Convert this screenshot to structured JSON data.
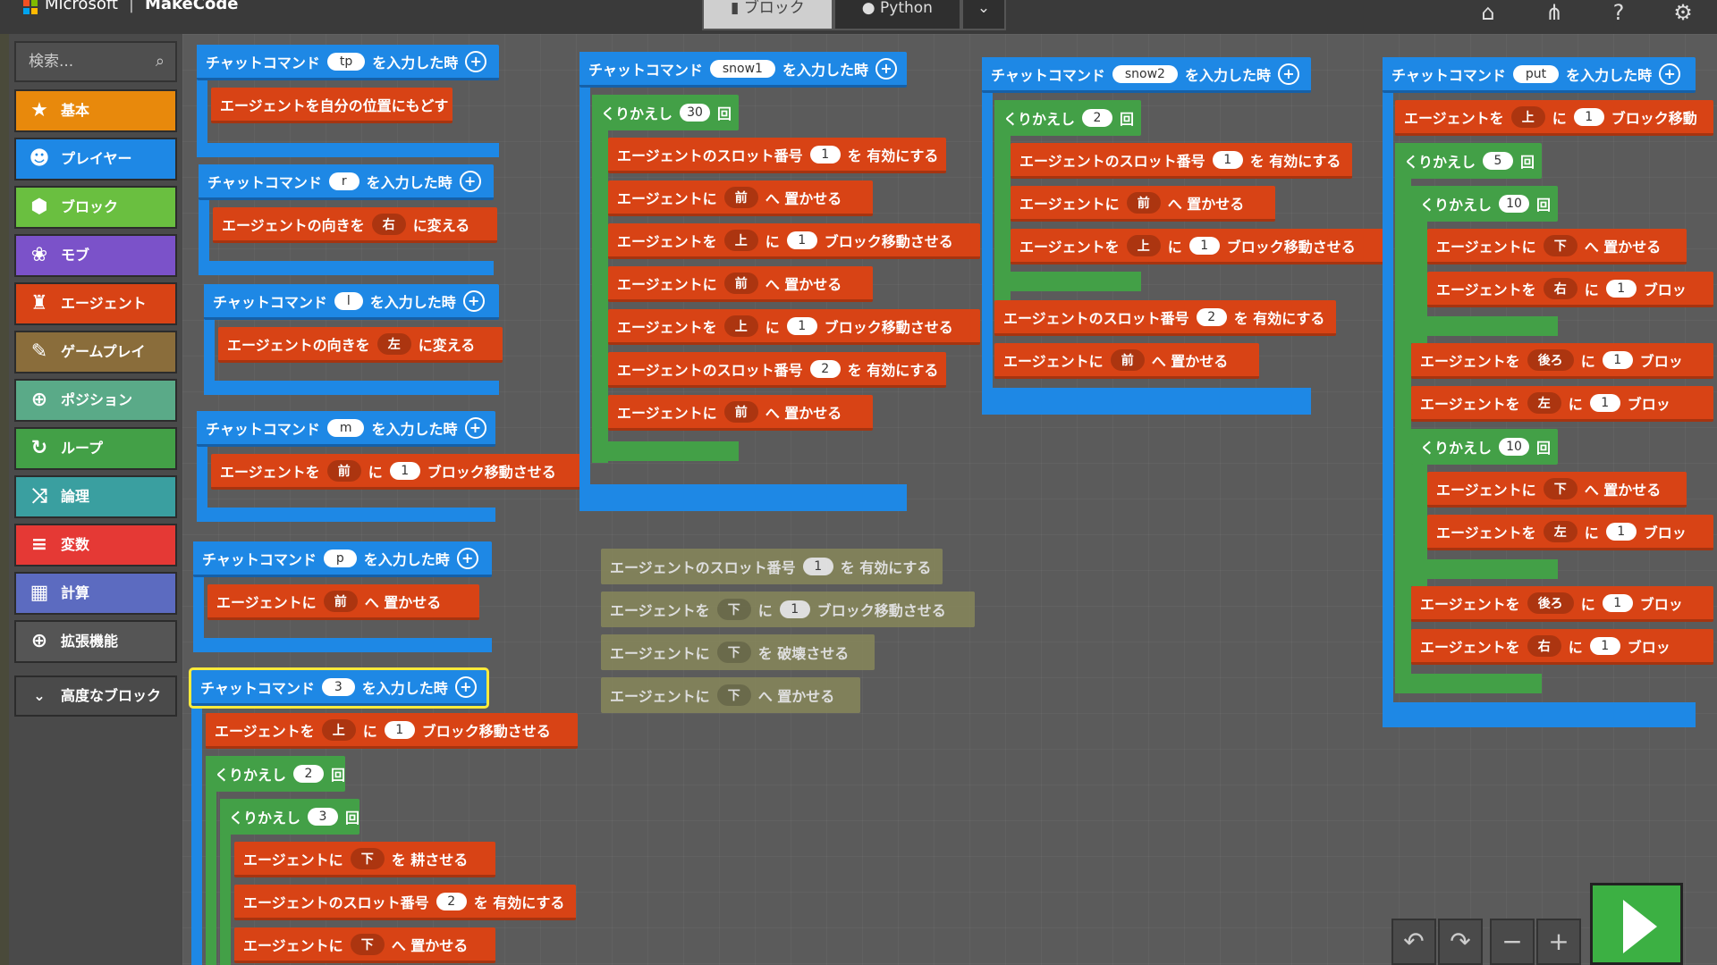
{
  "header": {
    "brand": "Microsoft",
    "app": "MakeCode",
    "tabs": [
      "ブロック",
      "Python"
    ],
    "icons": [
      "home-icon",
      "share-icon",
      "help-icon",
      "gear-icon"
    ]
  },
  "colors": {
    "event": "#1e88e5",
    "agent": "#d84315",
    "loop": "#43a047",
    "run": "#3cb043"
  },
  "toolbox": {
    "search_placeholder": "検索...",
    "categories": [
      {
        "label": "基本",
        "icon": "star-icon",
        "color": "#e8890c"
      },
      {
        "label": "プレイヤー",
        "icon": "person-icon",
        "color": "#1e88e5"
      },
      {
        "label": "ブロック",
        "icon": "cube-icon",
        "color": "#6abf40"
      },
      {
        "label": "モブ",
        "icon": "paw-icon",
        "color": "#7b52c9"
      },
      {
        "label": "エージェント",
        "icon": "agent-icon",
        "color": "#d84315"
      },
      {
        "label": "ゲームプレイ",
        "icon": "wrench-icon",
        "color": "#8a6d3b"
      },
      {
        "label": "ポジション",
        "icon": "crosshair-icon",
        "color": "#5aaa88"
      },
      {
        "label": "ループ",
        "icon": "loop-icon",
        "color": "#43a047"
      },
      {
        "label": "論理",
        "icon": "shuffle-icon",
        "color": "#3a9fa0"
      },
      {
        "label": "変数",
        "icon": "list-icon",
        "color": "#e53935"
      },
      {
        "label": "計算",
        "icon": "calculator-icon",
        "color": "#5c6bc0"
      },
      {
        "label": "拡張機能",
        "icon": "plus-circle-icon",
        "color": "#555555"
      }
    ],
    "advanced": "高度なブロック"
  },
  "blocks": {
    "tp": {
      "label": "チャットコマンド",
      "arg": "tp",
      "suffix": "を入力した時",
      "body": "エージェントを自分の位置にもどす"
    },
    "r": {
      "label": "チャットコマンド",
      "arg": "r",
      "suffix": "を入力した時",
      "body_a": "エージェントの向きを",
      "body_dd": "右",
      "body_b": "に変える"
    },
    "l": {
      "label": "チャットコマンド",
      "arg": "l",
      "suffix": "を入力した時",
      "body_a": "エージェントの向きを",
      "body_dd": "左",
      "body_b": "に変える"
    },
    "m": {
      "label": "チャットコマンド",
      "arg": "m",
      "suffix": "を入力した時",
      "body_a": "エージェントを",
      "body_dd": "前",
      "body_b": "に",
      "body_n": "1",
      "body_c": "ブロック移動させる"
    },
    "p": {
      "label": "チャットコマンド",
      "arg": "p",
      "suffix": "を入力した時",
      "body_a": "エージェントに",
      "body_dd": "前",
      "body_b": "へ 置かせる"
    },
    "three": {
      "label": "チャットコマンド",
      "arg": "3",
      "suffix": "を入力した時",
      "move_a": "エージェントを",
      "move_dd": "上",
      "move_b": "に",
      "move_n": "1",
      "move_c": "ブロック移動させる",
      "loop1": "くりかえし",
      "loop1_n": "2",
      "loop_times": "回",
      "loop2": "くりかえし",
      "loop2_n": "3",
      "till_a": "エージェントに",
      "till_dd": "下",
      "till_b": "を 耕させる",
      "slot_a": "エージェントのスロット番号",
      "slot_n": "2",
      "slot_b": "を 有効にする",
      "place_a": "エージェントに",
      "place_dd": "下",
      "place_b": "へ 置かせる"
    },
    "snow1": {
      "label": "チャットコマンド",
      "arg": "snow1",
      "suffix": "を入力した時",
      "loop": "くりかえし",
      "loop_n": "30",
      "times": "回",
      "slot": "エージェントのスロット番号",
      "slot_n1": "1",
      "slot_n2": "2",
      "enable": "を 有効にする",
      "place_a": "エージェントに",
      "front": "前",
      "place_b": "へ 置かせる",
      "move_a": "エージェントを",
      "up": "上",
      "ni": "に",
      "one": "1",
      "move_b": "ブロック移動させる"
    },
    "snow2": {
      "label": "チャットコマンド",
      "arg": "snow2",
      "suffix": "を入力した時",
      "loop": "くりかえし",
      "loop_n": "2",
      "times": "回",
      "slot": "エージェントのスロット番号",
      "slot_n1": "1",
      "slot_n2": "2",
      "enable": "を 有効にする",
      "place_a": "エージェントに",
      "front": "前",
      "place_b": "へ 置かせる",
      "move_a": "エージェントを",
      "up": "上",
      "ni": "に",
      "one": "1",
      "move_b": "ブロック移動させる"
    },
    "put": {
      "label": "チャットコマンド",
      "arg": "put",
      "suffix": "を入力した時",
      "move_a": "エージェントを",
      "up": "上",
      "ni": "に",
      "one": "1",
      "move_b": "ブロック移動",
      "loop": "くりかえし",
      "loop_n5": "5",
      "loop_n10": "10",
      "times": "回",
      "place_a": "エージェントに",
      "down": "下",
      "place_b": "へ 置かせる",
      "right": "右",
      "back": "後ろ",
      "left": "左",
      "move_short": "ブロッ"
    },
    "loose": {
      "slot": "エージェントのスロット番号",
      "slot_n": "1",
      "enable": "を 有効にする",
      "move_a": "エージェントを",
      "down": "下",
      "ni": "に",
      "one": "1",
      "move_b": "ブロック移動させる",
      "destroy_a": "エージェントに",
      "destroy_b": "を 破壊させる",
      "place_a": "エージェントに",
      "place_b": "へ 置かせる"
    }
  },
  "controls": [
    "undo-icon",
    "redo-icon",
    "zoom-out-icon",
    "zoom-in-icon",
    "run-icon"
  ]
}
